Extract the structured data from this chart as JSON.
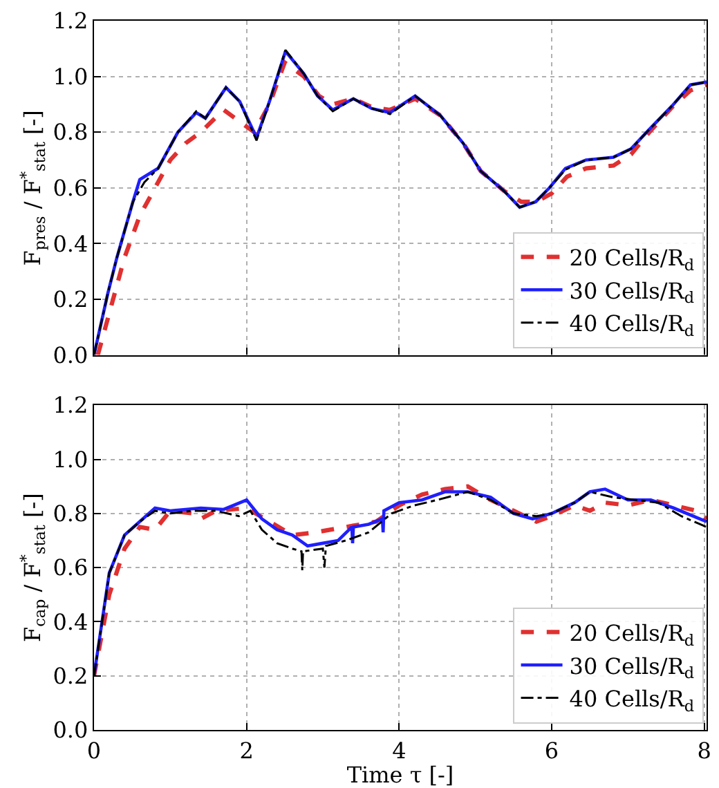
{
  "chart_data": [
    {
      "type": "line",
      "ylabel": "F$_{pres}$ / F$^{*}$$_{stat}$ [-]",
      "xlim": [
        0,
        8.03
      ],
      "ylim": [
        0,
        1.2
      ],
      "xticks": [
        0,
        2,
        4,
        6,
        8
      ],
      "yticks": [
        {
          "value": 0,
          "label": "0.0"
        },
        {
          "value": 0.2,
          "label": "0.2"
        },
        {
          "value": 0.4,
          "label": "0.4"
        },
        {
          "value": 0.6,
          "label": "0.6"
        },
        {
          "value": 0.8,
          "label": "0.8"
        },
        {
          "value": 1.0,
          "label": "1.0"
        },
        {
          "value": 1.2,
          "label": "1.2"
        }
      ],
      "grid": true,
      "legend": "bottom right",
      "tick_labels": "y",
      "marker": "none",
      "series": [
        {
          "name": "20 Cells/R$_{d}$",
          "color": "#e03030",
          "line_style": "dashed",
          "x": [
            0.05,
            0.2,
            0.4,
            0.6,
            0.8,
            1.0,
            1.2,
            1.4,
            1.7,
            1.9,
            2.1,
            2.3,
            2.5,
            2.75,
            2.95,
            3.13,
            3.4,
            3.64,
            3.88,
            4.21,
            4.54,
            4.84,
            5.07,
            5.37,
            5.6,
            5.8,
            6.0,
            6.2,
            6.45,
            6.81,
            7.04,
            7.28,
            7.58,
            7.82,
            8.03
          ],
          "values": [
            0,
            0.15,
            0.35,
            0.5,
            0.6,
            0.7,
            0.76,
            0.8,
            0.88,
            0.84,
            0.8,
            0.9,
            1.05,
            1.0,
            0.93,
            0.9,
            0.92,
            0.89,
            0.88,
            0.92,
            0.86,
            0.76,
            0.66,
            0.59,
            0.55,
            0.55,
            0.58,
            0.64,
            0.67,
            0.68,
            0.72,
            0.8,
            0.89,
            0.95,
            0.97
          ]
        },
        {
          "name": "30 Cells/R$_{d}$",
          "color": "#1f1fff",
          "line_style": "solid",
          "x": [
            0,
            0.18,
            0.3,
            0.51,
            0.6,
            0.84,
            1.1,
            1.34,
            1.46,
            1.73,
            1.91,
            2.13,
            2.3,
            2.51,
            2.75,
            2.93,
            3.13,
            3.4,
            3.64,
            3.88,
            4.21,
            4.54,
            4.84,
            5.07,
            5.37,
            5.58,
            5.79,
            5.97,
            6.18,
            6.45,
            6.81,
            7.04,
            7.28,
            7.58,
            7.82,
            8.03
          ],
          "values": [
            0,
            0.22,
            0.35,
            0.55,
            0.63,
            0.67,
            0.8,
            0.87,
            0.85,
            0.96,
            0.91,
            0.78,
            0.91,
            1.09,
            1.01,
            0.93,
            0.88,
            0.92,
            0.885,
            0.87,
            0.93,
            0.86,
            0.76,
            0.66,
            0.59,
            0.53,
            0.55,
            0.6,
            0.67,
            0.7,
            0.71,
            0.74,
            0.81,
            0.895,
            0.97,
            0.98
          ]
        },
        {
          "name": "40 Cells/R$_{d}$",
          "color": "#000000",
          "line_style": "dashdot",
          "x": [
            0,
            0.18,
            0.3,
            0.51,
            0.66,
            0.84,
            1.1,
            1.34,
            1.46,
            1.73,
            1.91,
            2.13,
            2.3,
            2.51,
            2.75,
            2.93,
            3.13,
            3.4,
            3.64,
            3.88,
            4.21,
            4.54,
            4.84,
            5.07,
            5.37,
            5.58,
            5.79,
            5.97,
            6.18,
            6.45,
            6.81,
            7.04,
            7.28,
            7.58,
            7.82,
            8.03
          ],
          "values": [
            0,
            0.22,
            0.35,
            0.55,
            0.62,
            0.67,
            0.8,
            0.875,
            0.85,
            0.96,
            0.91,
            0.77,
            0.91,
            1.095,
            1.01,
            0.93,
            0.875,
            0.92,
            0.885,
            0.865,
            0.93,
            0.86,
            0.76,
            0.66,
            0.59,
            0.53,
            0.55,
            0.6,
            0.665,
            0.7,
            0.71,
            0.74,
            0.81,
            0.895,
            0.97,
            0.98
          ]
        }
      ]
    },
    {
      "type": "line",
      "xlabel": "Time τ [-]",
      "ylabel": "F$_{cap}$ / F$^{*}$$_{stat}$ [-]",
      "xlim": [
        0,
        8.03
      ],
      "ylim": [
        0,
        1.2
      ],
      "xticks": [
        0,
        2,
        4,
        6,
        8
      ],
      "yticks": [
        {
          "value": 0,
          "label": "0.0"
        },
        {
          "value": 0.2,
          "label": "0.2"
        },
        {
          "value": 0.4,
          "label": "0.4"
        },
        {
          "value": 0.6,
          "label": "0.6"
        },
        {
          "value": 0.8,
          "label": "0.8"
        },
        {
          "value": 1.0,
          "label": "1.0"
        },
        {
          "value": 1.2,
          "label": "1.2"
        }
      ],
      "grid": true,
      "legend": "bottom right",
      "marker": "none",
      "series": [
        {
          "name": "20 Cells/R$_{d}$",
          "color": "#e03030",
          "line_style": "dashed",
          "x": [
            0,
            0.2,
            0.4,
            0.6,
            0.8,
            1.0,
            1.3,
            1.4,
            1.6,
            2.0,
            2.3,
            2.6,
            2.9,
            3.3,
            3.7,
            4.0,
            4.3,
            4.6,
            4.9,
            5.2,
            5.5,
            5.8,
            6.0,
            6.3,
            6.5,
            6.7,
            7.0,
            7.3,
            7.6,
            7.9,
            8.03
          ],
          "values": [
            0.2,
            0.5,
            0.67,
            0.75,
            0.74,
            0.81,
            0.8,
            0.78,
            0.81,
            0.82,
            0.77,
            0.72,
            0.73,
            0.75,
            0.77,
            0.83,
            0.87,
            0.89,
            0.9,
            0.85,
            0.81,
            0.77,
            0.79,
            0.83,
            0.81,
            0.84,
            0.83,
            0.85,
            0.83,
            0.81,
            0.78
          ]
        },
        {
          "name": "30 Cells/R$_{d}$",
          "color": "#1f1fff",
          "line_style": "solid",
          "x": [
            0,
            0.2,
            0.4,
            0.6,
            0.8,
            1.0,
            1.4,
            1.7,
            2.0,
            2.2,
            2.4,
            2.6,
            2.8,
            3.0,
            3.2,
            3.38,
            3.39,
            3.4,
            3.6,
            3.78,
            3.79,
            3.8,
            4.0,
            4.3,
            4.6,
            4.9,
            5.2,
            5.5,
            5.75,
            6.0,
            6.3,
            6.5,
            6.7,
            7.0,
            7.3,
            7.6,
            8.03
          ],
          "values": [
            0.2,
            0.58,
            0.72,
            0.77,
            0.82,
            0.81,
            0.82,
            0.815,
            0.85,
            0.78,
            0.74,
            0.72,
            0.68,
            0.69,
            0.7,
            0.75,
            0.69,
            0.75,
            0.76,
            0.78,
            0.73,
            0.81,
            0.84,
            0.85,
            0.88,
            0.88,
            0.86,
            0.8,
            0.78,
            0.8,
            0.84,
            0.88,
            0.89,
            0.85,
            0.85,
            0.82,
            0.77
          ]
        },
        {
          "name": "40 Cells/R$_{d}$",
          "color": "#000000",
          "line_style": "dashdot",
          "x": [
            0,
            0.2,
            0.4,
            0.6,
            0.8,
            1.0,
            1.3,
            1.6,
            1.9,
            2.05,
            2.2,
            2.4,
            2.6,
            2.72,
            2.73,
            2.74,
            3.0,
            3.02,
            3.04,
            3.3,
            3.6,
            3.9,
            4.2,
            4.5,
            4.9,
            5.2,
            5.5,
            5.8,
            6.0,
            6.3,
            6.5,
            6.8,
            7.1,
            7.4,
            7.7,
            8.03
          ],
          "values": [
            0.2,
            0.58,
            0.72,
            0.77,
            0.81,
            0.8,
            0.81,
            0.81,
            0.79,
            0.81,
            0.74,
            0.69,
            0.67,
            0.66,
            0.59,
            0.66,
            0.67,
            0.6,
            0.68,
            0.7,
            0.73,
            0.8,
            0.83,
            0.85,
            0.88,
            0.85,
            0.8,
            0.79,
            0.8,
            0.84,
            0.88,
            0.86,
            0.85,
            0.84,
            0.79,
            0.75
          ]
        }
      ]
    }
  ]
}
